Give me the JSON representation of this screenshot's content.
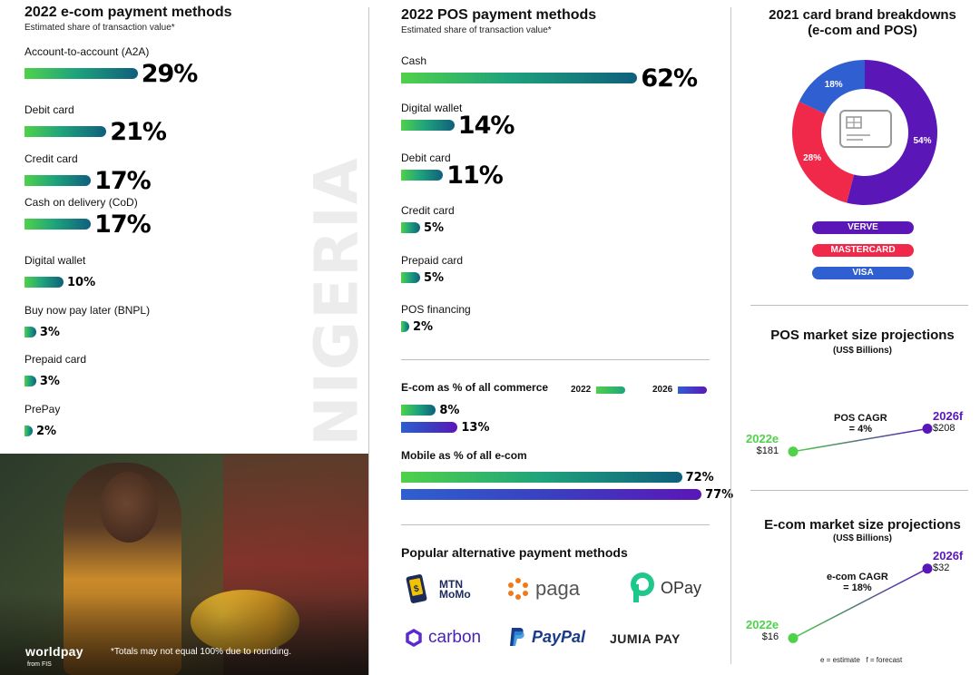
{
  "ecom": {
    "title": "2022 e-com payment methods",
    "subtitle": "Estimated share of transaction value*",
    "items": [
      {
        "label": "Account-to-account (A2A)",
        "value": 29,
        "display": "29%"
      },
      {
        "label": "Debit card",
        "value": 21,
        "display": "21%"
      },
      {
        "label": "Credit card",
        "value": 17,
        "display": "17%"
      },
      {
        "label": "Cash on delivery (CoD)",
        "value": 17,
        "display": "17%"
      },
      {
        "label": "Digital wallet",
        "value": 10,
        "display": "10%"
      },
      {
        "label": "Buy now pay later (BNPL)",
        "value": 3,
        "display": "3%"
      },
      {
        "label": "Prepaid card",
        "value": 3,
        "display": "3%"
      },
      {
        "label": "PrePay",
        "value": 2,
        "display": "2%"
      }
    ]
  },
  "country_label": "NIGERIA",
  "brand": {
    "name": "worldpay",
    "from": "from FIS"
  },
  "footnote": "*Totals may not equal 100% due to rounding.",
  "pos": {
    "title": "2022 POS payment methods",
    "subtitle": "Estimated share of transaction value*",
    "items": [
      {
        "label": "Cash",
        "value": 62,
        "display": "62%"
      },
      {
        "label": "Digital wallet",
        "value": 14,
        "display": "14%"
      },
      {
        "label": "Debit card",
        "value": 11,
        "display": "11%"
      },
      {
        "label": "Credit card",
        "value": 5,
        "display": "5%"
      },
      {
        "label": "Prepaid card",
        "value": 5,
        "display": "5%"
      },
      {
        "label": "POS financing",
        "value": 2,
        "display": "2%"
      }
    ]
  },
  "commerce": {
    "title": "E-com as % of all commerce",
    "legend_2022": "2022",
    "legend_2026": "2026",
    "v2022": 8,
    "d2022": "8%",
    "v2026": 13,
    "d2026": "13%"
  },
  "mobile": {
    "title": "Mobile as % of all e-com",
    "v2022": 72,
    "d2022": "72%",
    "v2026": 77,
    "d2026": "77%"
  },
  "apm": {
    "title": "Popular alternative payment methods",
    "logos": [
      "MTN MoMo",
      "paga",
      "OPay",
      "carbon",
      "PayPal",
      "JUMIA PAY"
    ]
  },
  "card_brand": {
    "title_line1": "2021 card brand breakdowns",
    "title_line2": "(e-com and POS)",
    "slices": [
      {
        "name": "VERVE",
        "value": 54,
        "display": "54%",
        "color": "#5b16b8"
      },
      {
        "name": "MASTERCARD",
        "value": 28,
        "display": "28%",
        "color": "#f0284a"
      },
      {
        "name": "VISA",
        "value": 18,
        "display": "18%",
        "color": "#2f5fd0"
      }
    ]
  },
  "pos_proj": {
    "title": "POS market size projections",
    "subtitle": "(US$ Billions)",
    "cagr_line1": "POS CAGR",
    "cagr_line2": "= 4%",
    "start_year": "2022e",
    "start_value": 181,
    "start_display": "$181",
    "end_year": "2026f",
    "end_value": 208,
    "end_display": "$208"
  },
  "ecom_proj": {
    "title": "E-com market size projections",
    "subtitle": "(US$ Billions)",
    "cagr_line1": "e-com CAGR",
    "cagr_line2": "= 18%",
    "start_year": "2022e",
    "start_value": 16,
    "start_display": "$16",
    "end_year": "2026f",
    "end_value": 32,
    "end_display": "$32"
  },
  "legend_note": "e = estimate   f = forecast",
  "chart_data": [
    {
      "type": "bar",
      "title": "2022 e-com payment methods",
      "subtitle": "Estimated share of transaction value*",
      "categories": [
        "Account-to-account (A2A)",
        "Debit card",
        "Credit card",
        "Cash on delivery (CoD)",
        "Digital wallet",
        "Buy now pay later (BNPL)",
        "Prepaid card",
        "PrePay"
      ],
      "values": [
        29,
        21,
        17,
        17,
        10,
        3,
        3,
        2
      ]
    },
    {
      "type": "bar",
      "title": "2022 POS payment methods",
      "subtitle": "Estimated share of transaction value*",
      "categories": [
        "Cash",
        "Digital wallet",
        "Debit card",
        "Credit card",
        "Prepaid card",
        "POS financing"
      ],
      "values": [
        62,
        14,
        11,
        5,
        5,
        2
      ]
    },
    {
      "type": "bar",
      "title": "E-com as % of all commerce",
      "categories": [
        "2022",
        "2026"
      ],
      "values": [
        8,
        13
      ]
    },
    {
      "type": "bar",
      "title": "Mobile as % of all e-com",
      "categories": [
        "2022",
        "2026"
      ],
      "values": [
        72,
        77
      ]
    },
    {
      "type": "pie",
      "title": "2021 card brand breakdowns (e-com and POS)",
      "categories": [
        "VERVE",
        "MASTERCARD",
        "VISA"
      ],
      "values": [
        54,
        28,
        18
      ]
    },
    {
      "type": "line",
      "title": "POS market size projections",
      "ylabel": "(US$ Billions)",
      "x": [
        "2022e",
        "2026f"
      ],
      "values": [
        181,
        208
      ]
    },
    {
      "type": "line",
      "title": "E-com market size projections",
      "ylabel": "(US$ Billions)",
      "x": [
        "2022e",
        "2026f"
      ],
      "values": [
        16,
        32
      ]
    }
  ]
}
